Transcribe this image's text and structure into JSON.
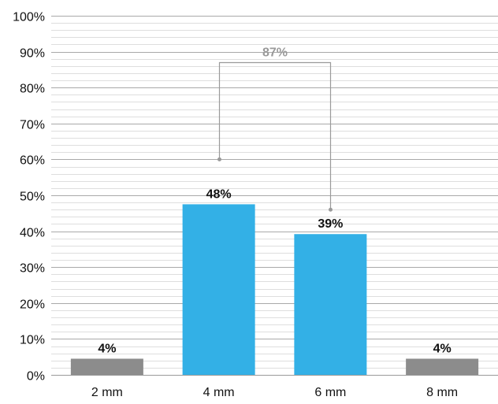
{
  "chart_data": {
    "type": "bar",
    "categories": [
      "2 mm",
      "4 mm",
      "6 mm",
      "8 mm"
    ],
    "values": [
      4.5,
      47.5,
      39.2,
      4.5
    ],
    "data_labels": [
      "4%",
      "48%",
      "39%",
      "4%"
    ],
    "bar_colors": [
      "#8c8c8c",
      "#33b0e6",
      "#33b0e6",
      "#8c8c8c"
    ],
    "yticks": [
      "0%",
      "10%",
      "20%",
      "30%",
      "40%",
      "50%",
      "60%",
      "70%",
      "80%",
      "90%",
      "100%"
    ],
    "ylim": [
      0,
      100
    ],
    "minor_gridlines": true,
    "title": "",
    "xlabel": "",
    "ylabel": "",
    "bracket": {
      "label": "87%",
      "from_category": "4 mm",
      "to_category": "6 mm",
      "from_value": 60,
      "to_value": 46,
      "top_value": 87,
      "color": "#9a9a9a"
    }
  }
}
